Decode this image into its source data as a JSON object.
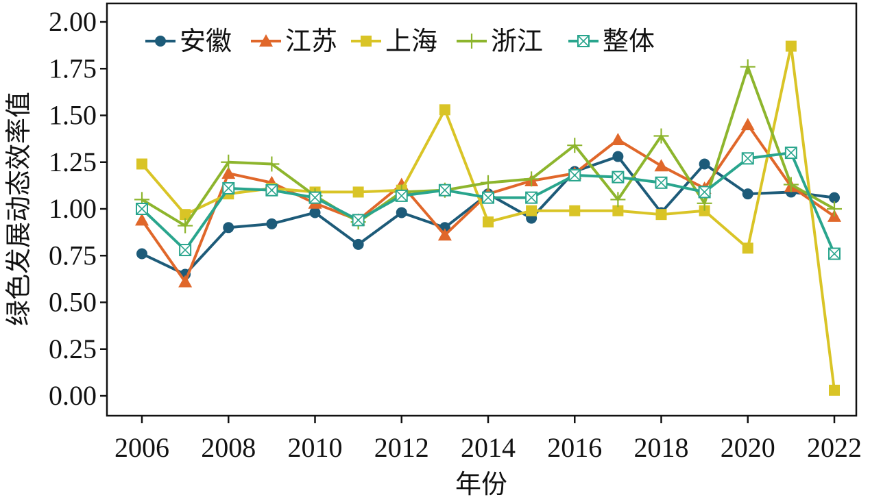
{
  "chart_data": {
    "type": "line",
    "xlabel": "年份",
    "ylabel": "绿色发展动态效率值",
    "x": [
      2006,
      2007,
      2008,
      2009,
      2010,
      2011,
      2012,
      2013,
      2014,
      2015,
      2016,
      2017,
      2018,
      2019,
      2020,
      2021,
      2022
    ],
    "x_ticks": [
      "2006",
      "2008",
      "2010",
      "2012",
      "2014",
      "2016",
      "2018",
      "2020",
      "2022"
    ],
    "xlim": [
      2006,
      2022
    ],
    "y_ticks": [
      "2.00",
      "1.75",
      "1.50",
      "1.25",
      "1.00",
      "0.75",
      "0.50",
      "0.25",
      "0.00"
    ],
    "ylim": [
      0,
      2
    ],
    "legend_position": "top-left",
    "grid": false,
    "series": [
      {
        "name": "安徽",
        "color": "#1d5b79",
        "marker": "circle",
        "values": [
          0.76,
          0.65,
          0.9,
          0.92,
          0.98,
          0.81,
          0.98,
          0.9,
          1.08,
          0.95,
          1.2,
          1.28,
          0.98,
          1.24,
          1.08,
          1.09,
          1.06
        ]
      },
      {
        "name": "江苏",
        "color": "#e0672a",
        "marker": "triangle",
        "values": [
          0.94,
          0.61,
          1.19,
          1.14,
          1.03,
          0.94,
          1.13,
          0.86,
          1.08,
          1.15,
          1.19,
          1.37,
          1.23,
          1.11,
          1.45,
          1.12,
          0.96
        ]
      },
      {
        "name": "上海",
        "color": "#d9c426",
        "marker": "square",
        "values": [
          1.24,
          0.97,
          1.08,
          1.11,
          1.09,
          1.09,
          1.1,
          1.53,
          0.93,
          0.99,
          0.99,
          0.99,
          0.97,
          0.99,
          0.79,
          1.87,
          0.03
        ]
      },
      {
        "name": "浙江",
        "color": "#8db52d",
        "marker": "plus",
        "values": [
          1.05,
          0.91,
          1.25,
          1.24,
          1.07,
          0.93,
          1.09,
          1.1,
          1.14,
          1.16,
          1.34,
          1.05,
          1.39,
          1.03,
          1.76,
          1.13,
          1.0
        ]
      },
      {
        "name": "整体",
        "color": "#29a58d",
        "marker": "boxx",
        "values": [
          1.0,
          0.78,
          1.11,
          1.1,
          1.06,
          0.94,
          1.07,
          1.1,
          1.06,
          1.06,
          1.18,
          1.17,
          1.14,
          1.09,
          1.27,
          1.3,
          0.76
        ]
      }
    ]
  }
}
